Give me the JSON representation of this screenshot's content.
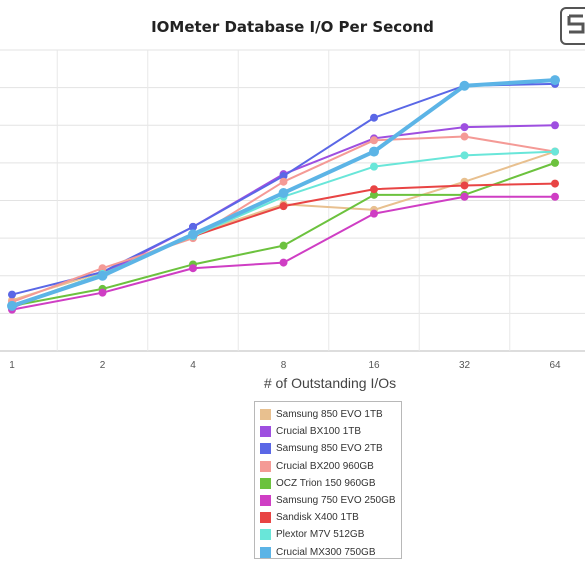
{
  "chart_data": {
    "type": "line",
    "title": "IOMeter Database I/O Per Second",
    "xlabel": "# of Outstanding I/Os",
    "ylabel": "",
    "x": [
      "1",
      "2",
      "4",
      "8",
      "16",
      "32",
      "64"
    ],
    "ylim": [
      0,
      8
    ],
    "grid": true,
    "legend": "bottom-center",
    "series": [
      {
        "name": "Samsung 850 EVO 1TB",
        "color": "#e8c08f",
        "values": [
          1.35,
          2.1,
          3.1,
          3.9,
          3.75,
          4.5,
          5.3
        ]
      },
      {
        "name": "Crucial BX100 1TB",
        "color": "#9e4fe0",
        "values": [
          1.15,
          2.05,
          3.3,
          4.7,
          5.65,
          5.95,
          6.0
        ]
      },
      {
        "name": "Samsung 850 EVO 2TB",
        "color": "#5a67e6",
        "values": [
          1.5,
          2.1,
          3.3,
          4.65,
          6.2,
          7.05,
          7.1
        ]
      },
      {
        "name": "Crucial BX200 960GB",
        "color": "#f49a96",
        "values": [
          1.3,
          2.2,
          3.0,
          4.5,
          5.6,
          5.7,
          5.3
        ]
      },
      {
        "name": "OCZ Trion 150 960GB",
        "color": "#6cc23e",
        "values": [
          1.2,
          1.65,
          2.3,
          2.8,
          4.15,
          4.15,
          5.0
        ]
      },
      {
        "name": "Samsung 750 EVO 250GB",
        "color": "#cf3ec4",
        "values": [
          1.1,
          1.55,
          2.2,
          2.35,
          3.65,
          4.1,
          4.1
        ]
      },
      {
        "name": "Sandisk X400 1TB",
        "color": "#e84444",
        "values": [
          1.2,
          2.05,
          3.05,
          3.85,
          4.3,
          4.4,
          4.45
        ]
      },
      {
        "name": "Plextor M7V 512GB",
        "color": "#69e6d9",
        "values": [
          1.2,
          2.05,
          3.05,
          4.1,
          4.9,
          5.2,
          5.3
        ]
      },
      {
        "name": "Crucial MX300 750GB",
        "color": "#5cb4e6",
        "values": [
          1.2,
          2.0,
          3.1,
          4.2,
          5.3,
          7.05,
          7.2
        ]
      }
    ]
  }
}
